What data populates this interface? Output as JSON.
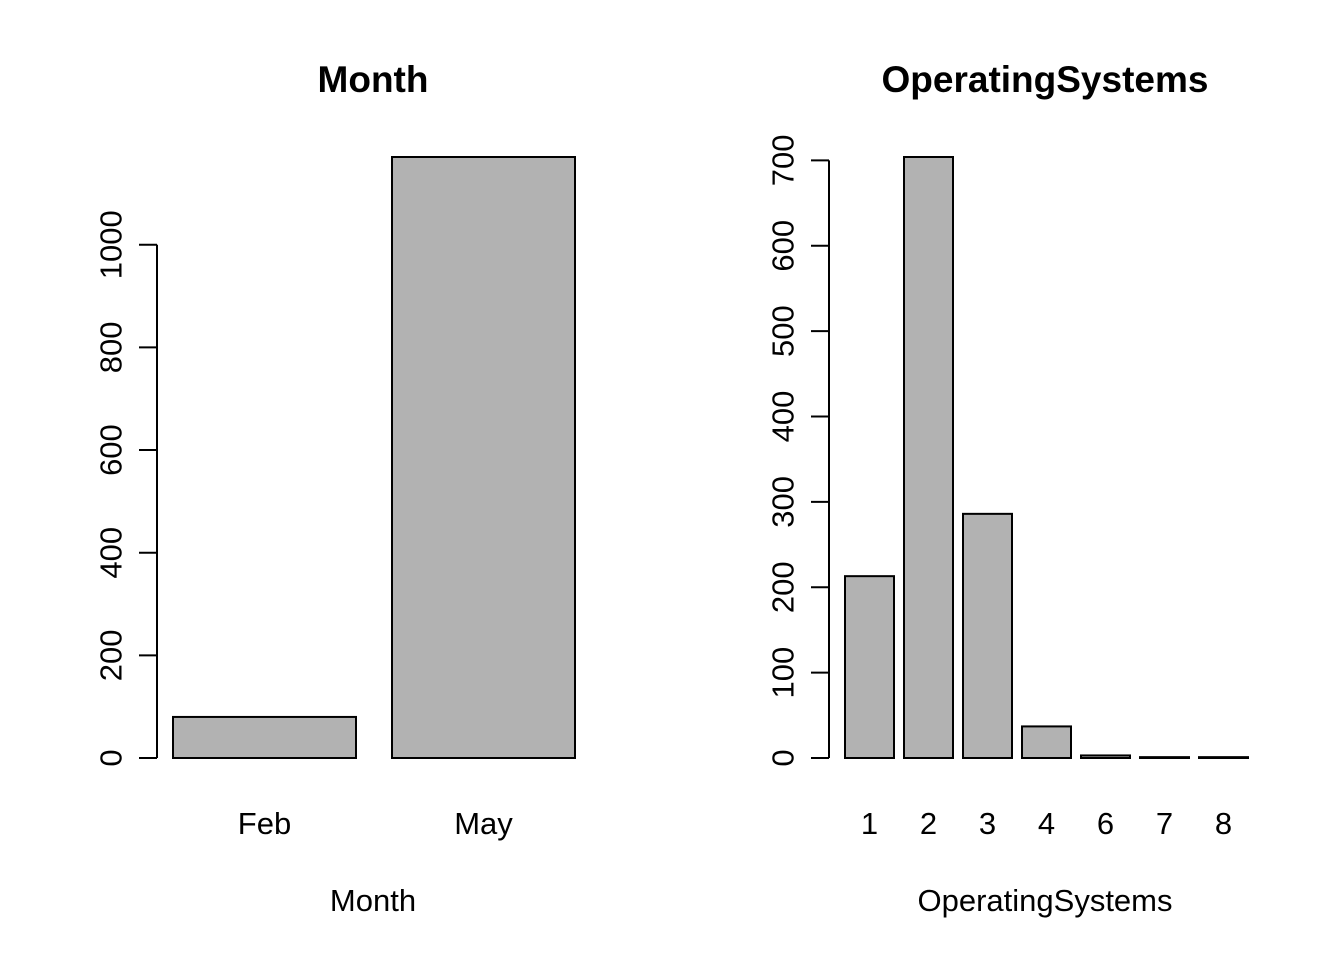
{
  "colors": {
    "bar_fill": "#b2b2b2",
    "bar_stroke": "#000000",
    "background": "#ffffff"
  },
  "chart_data": [
    {
      "type": "bar",
      "title": "Month",
      "xlabel": "Month",
      "ylabel": "",
      "categories": [
        "Feb",
        "May"
      ],
      "values": [
        80,
        1171
      ],
      "y_ticks": [
        0,
        200,
        400,
        600,
        800,
        1000
      ],
      "ylim": [
        0,
        1171
      ],
      "grid": false,
      "legend": "none"
    },
    {
      "type": "bar",
      "title": "OperatingSystems",
      "xlabel": "OperatingSystems",
      "ylabel": "",
      "categories": [
        "1",
        "2",
        "3",
        "4",
        "6",
        "7",
        "8"
      ],
      "values": [
        213,
        704,
        286,
        37,
        3,
        1,
        1
      ],
      "y_ticks": [
        0,
        100,
        200,
        300,
        400,
        500,
        600,
        700
      ],
      "ylim": [
        0,
        704
      ],
      "grid": false,
      "legend": "none"
    }
  ]
}
